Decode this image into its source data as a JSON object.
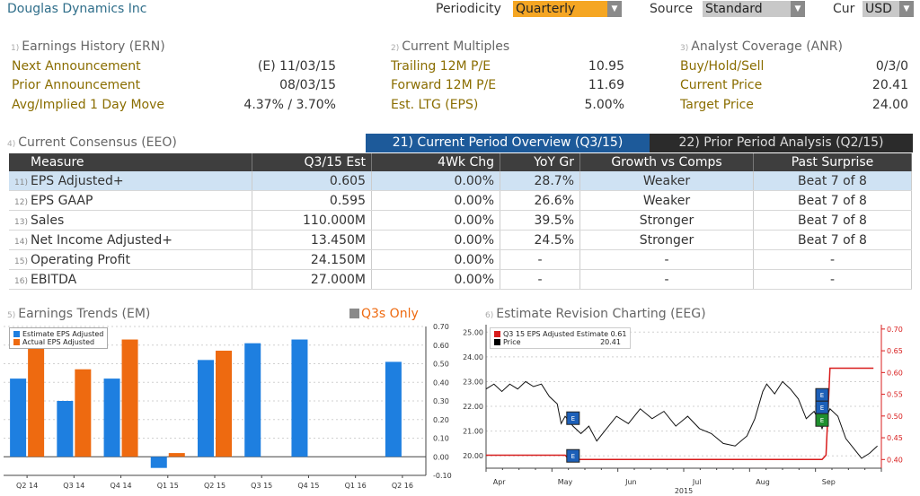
{
  "header": {
    "company": "Douglas Dynamics Inc",
    "periodicity_label": "Periodicity",
    "periodicity_value": "Quarterly",
    "source_label": "Source",
    "source_value": "Standard",
    "currency_label": "Cur",
    "currency_value": "USD"
  },
  "earnings_history": {
    "num": "1)",
    "title": "Earnings History (ERN)",
    "rows": [
      {
        "label": "Next Announcement",
        "value": "(E)  11/03/15"
      },
      {
        "label": "Prior Announcement",
        "value": "08/03/15"
      },
      {
        "label": "Avg/Implied 1 Day Move",
        "value": "4.37% / 3.70%"
      }
    ]
  },
  "current_multiples": {
    "num": "2)",
    "title": "Current Multiples",
    "rows": [
      {
        "label": "Trailing 12M P/E",
        "value": "10.95"
      },
      {
        "label": "Forward 12M P/E",
        "value": "11.69"
      },
      {
        "label": "Est. LTG (EPS)",
        "value": "5.00%"
      }
    ]
  },
  "analyst_coverage": {
    "num": "3)",
    "title": "Analyst Coverage (ANR)",
    "rows": [
      {
        "label": "Buy/Hold/Sell",
        "value": "0/3/0"
      },
      {
        "label": "Current Price",
        "value": "20.41"
      },
      {
        "label": "Target Price",
        "value": "24.00"
      }
    ]
  },
  "consensus": {
    "num": "4)",
    "title": "Current Consensus (EEO)",
    "tab_current": "21) Current Period Overview (Q3/15)",
    "tab_prior": "22) Prior Period Analysis (Q2/15)",
    "columns": [
      "Measure",
      "Q3/15 Est",
      "4Wk Chg",
      "YoY Gr",
      "Growth vs Comps",
      "Past Surprise"
    ],
    "rows": [
      {
        "num": "11)",
        "measure": "EPS Adjusted+",
        "est": "0.605",
        "chg": "0.00%",
        "yoy": "28.7%",
        "comps": "Weaker",
        "surprise": "Beat 7 of 8"
      },
      {
        "num": "12)",
        "measure": "EPS GAAP",
        "est": "0.595",
        "chg": "0.00%",
        "yoy": "26.6%",
        "comps": "Weaker",
        "surprise": "Beat 7 of 8"
      },
      {
        "num": "13)",
        "measure": "Sales",
        "est": "110.000M",
        "chg": "0.00%",
        "yoy": "39.5%",
        "comps": "Stronger",
        "surprise": "Beat 7 of 8"
      },
      {
        "num": "14)",
        "measure": "Net Income Adjusted+",
        "est": "13.450M",
        "chg": "0.00%",
        "yoy": "24.5%",
        "comps": "Stronger",
        "surprise": "Beat 7 of 8"
      },
      {
        "num": "15)",
        "measure": "Operating Profit",
        "est": "24.150M",
        "chg": "0.00%",
        "yoy": "-",
        "comps": "-",
        "surprise": "-"
      },
      {
        "num": "16)",
        "measure": "EBITDA",
        "est": "27.000M",
        "chg": "0.00%",
        "yoy": "-",
        "comps": "-",
        "surprise": "-"
      }
    ]
  },
  "earnings_trends": {
    "num": "5)",
    "title": "Earnings Trends (EM)",
    "q3_toggle": "Q3s Only"
  },
  "revision": {
    "num": "6)",
    "title": "Estimate Revision Charting (EEG)",
    "legend": [
      {
        "label": "Q3 15 EPS Adjusted Estimate",
        "value": "0.61"
      },
      {
        "label": "Price",
        "value": "20.41"
      }
    ],
    "markers": [
      "E",
      "E",
      "E",
      "E",
      "E"
    ]
  },
  "colors": {
    "blue": "#1e7fe0",
    "orange": "#ee6a10",
    "red": "#d81c1c",
    "amber_dropdown": "#f5a623",
    "tab_active": "#1d5a9a"
  },
  "chart_data": [
    {
      "type": "bar",
      "categories": [
        "Q2 14",
        "Q3 14",
        "Q4 14",
        "Q1 15",
        "Q2 15",
        "Q3 15",
        "Q4 15",
        "Q1 16",
        "Q2 16"
      ],
      "series": [
        {
          "name": "Estimate EPS Adjusted",
          "values": [
            0.42,
            0.3,
            0.42,
            -0.06,
            0.52,
            0.61,
            0.63,
            null,
            0.51
          ]
        },
        {
          "name": "Actual EPS Adjusted",
          "values": [
            0.58,
            0.47,
            0.63,
            0.02,
            0.57,
            null,
            null,
            null,
            null
          ]
        }
      ],
      "ylim": [
        -0.1,
        0.7
      ],
      "yticks": [
        "-0.10",
        "0.00",
        "0.10",
        "0.20",
        "0.30",
        "0.40",
        "0.50",
        "0.60",
        "0.70"
      ],
      "legend_position": "top-left"
    },
    {
      "type": "line",
      "x_ticks": [
        "Apr",
        "May",
        "Jun",
        "Jul",
        "Aug",
        "Sep"
      ],
      "x_year": "2015",
      "left_yticks": [
        "20.00",
        "21.00",
        "22.00",
        "23.00",
        "24.00",
        "25.00"
      ],
      "right_yticks": [
        "0.40",
        "0.45",
        "0.50",
        "0.55",
        "0.60",
        "0.65",
        "0.70"
      ],
      "left_ylim": [
        19.5,
        25.3
      ],
      "right_ylim": [
        0.38,
        0.71
      ],
      "price_series": {
        "name": "Price",
        "x": [
          0,
          0.02,
          0.04,
          0.06,
          0.08,
          0.1,
          0.12,
          0.14,
          0.16,
          0.18,
          0.19,
          0.2,
          0.22,
          0.24,
          0.26,
          0.28,
          0.3,
          0.33,
          0.36,
          0.39,
          0.42,
          0.45,
          0.48,
          0.51,
          0.54,
          0.57,
          0.6,
          0.63,
          0.66,
          0.68,
          0.7,
          0.71,
          0.72,
          0.73,
          0.75,
          0.77,
          0.79,
          0.81,
          0.83,
          0.85,
          0.87,
          0.89,
          0.91,
          0.93,
          0.95,
          0.97,
          0.99
        ],
        "values": [
          22.7,
          22.9,
          22.6,
          22.9,
          22.7,
          23.0,
          22.8,
          22.9,
          22.4,
          22.1,
          21.3,
          21.6,
          21.2,
          20.9,
          21.2,
          20.6,
          21.0,
          21.6,
          21.3,
          21.9,
          21.5,
          21.8,
          21.2,
          21.6,
          21.1,
          20.9,
          20.5,
          20.4,
          20.8,
          21.5,
          22.6,
          22.9,
          22.7,
          22.5,
          23.0,
          22.7,
          22.3,
          21.5,
          21.8,
          21.1,
          21.9,
          21.6,
          20.7,
          20.3,
          19.9,
          20.1,
          20.4
        ]
      },
      "estimate_series": {
        "name": "Q3 15 EPS Adjusted Estimate",
        "x": [
          0,
          0.2,
          0.21,
          0.22,
          0.85,
          0.86,
          0.87,
          0.98
        ],
        "values": [
          0.41,
          0.41,
          0.4,
          0.4,
          0.4,
          0.41,
          0.61,
          0.61
        ]
      }
    }
  ]
}
